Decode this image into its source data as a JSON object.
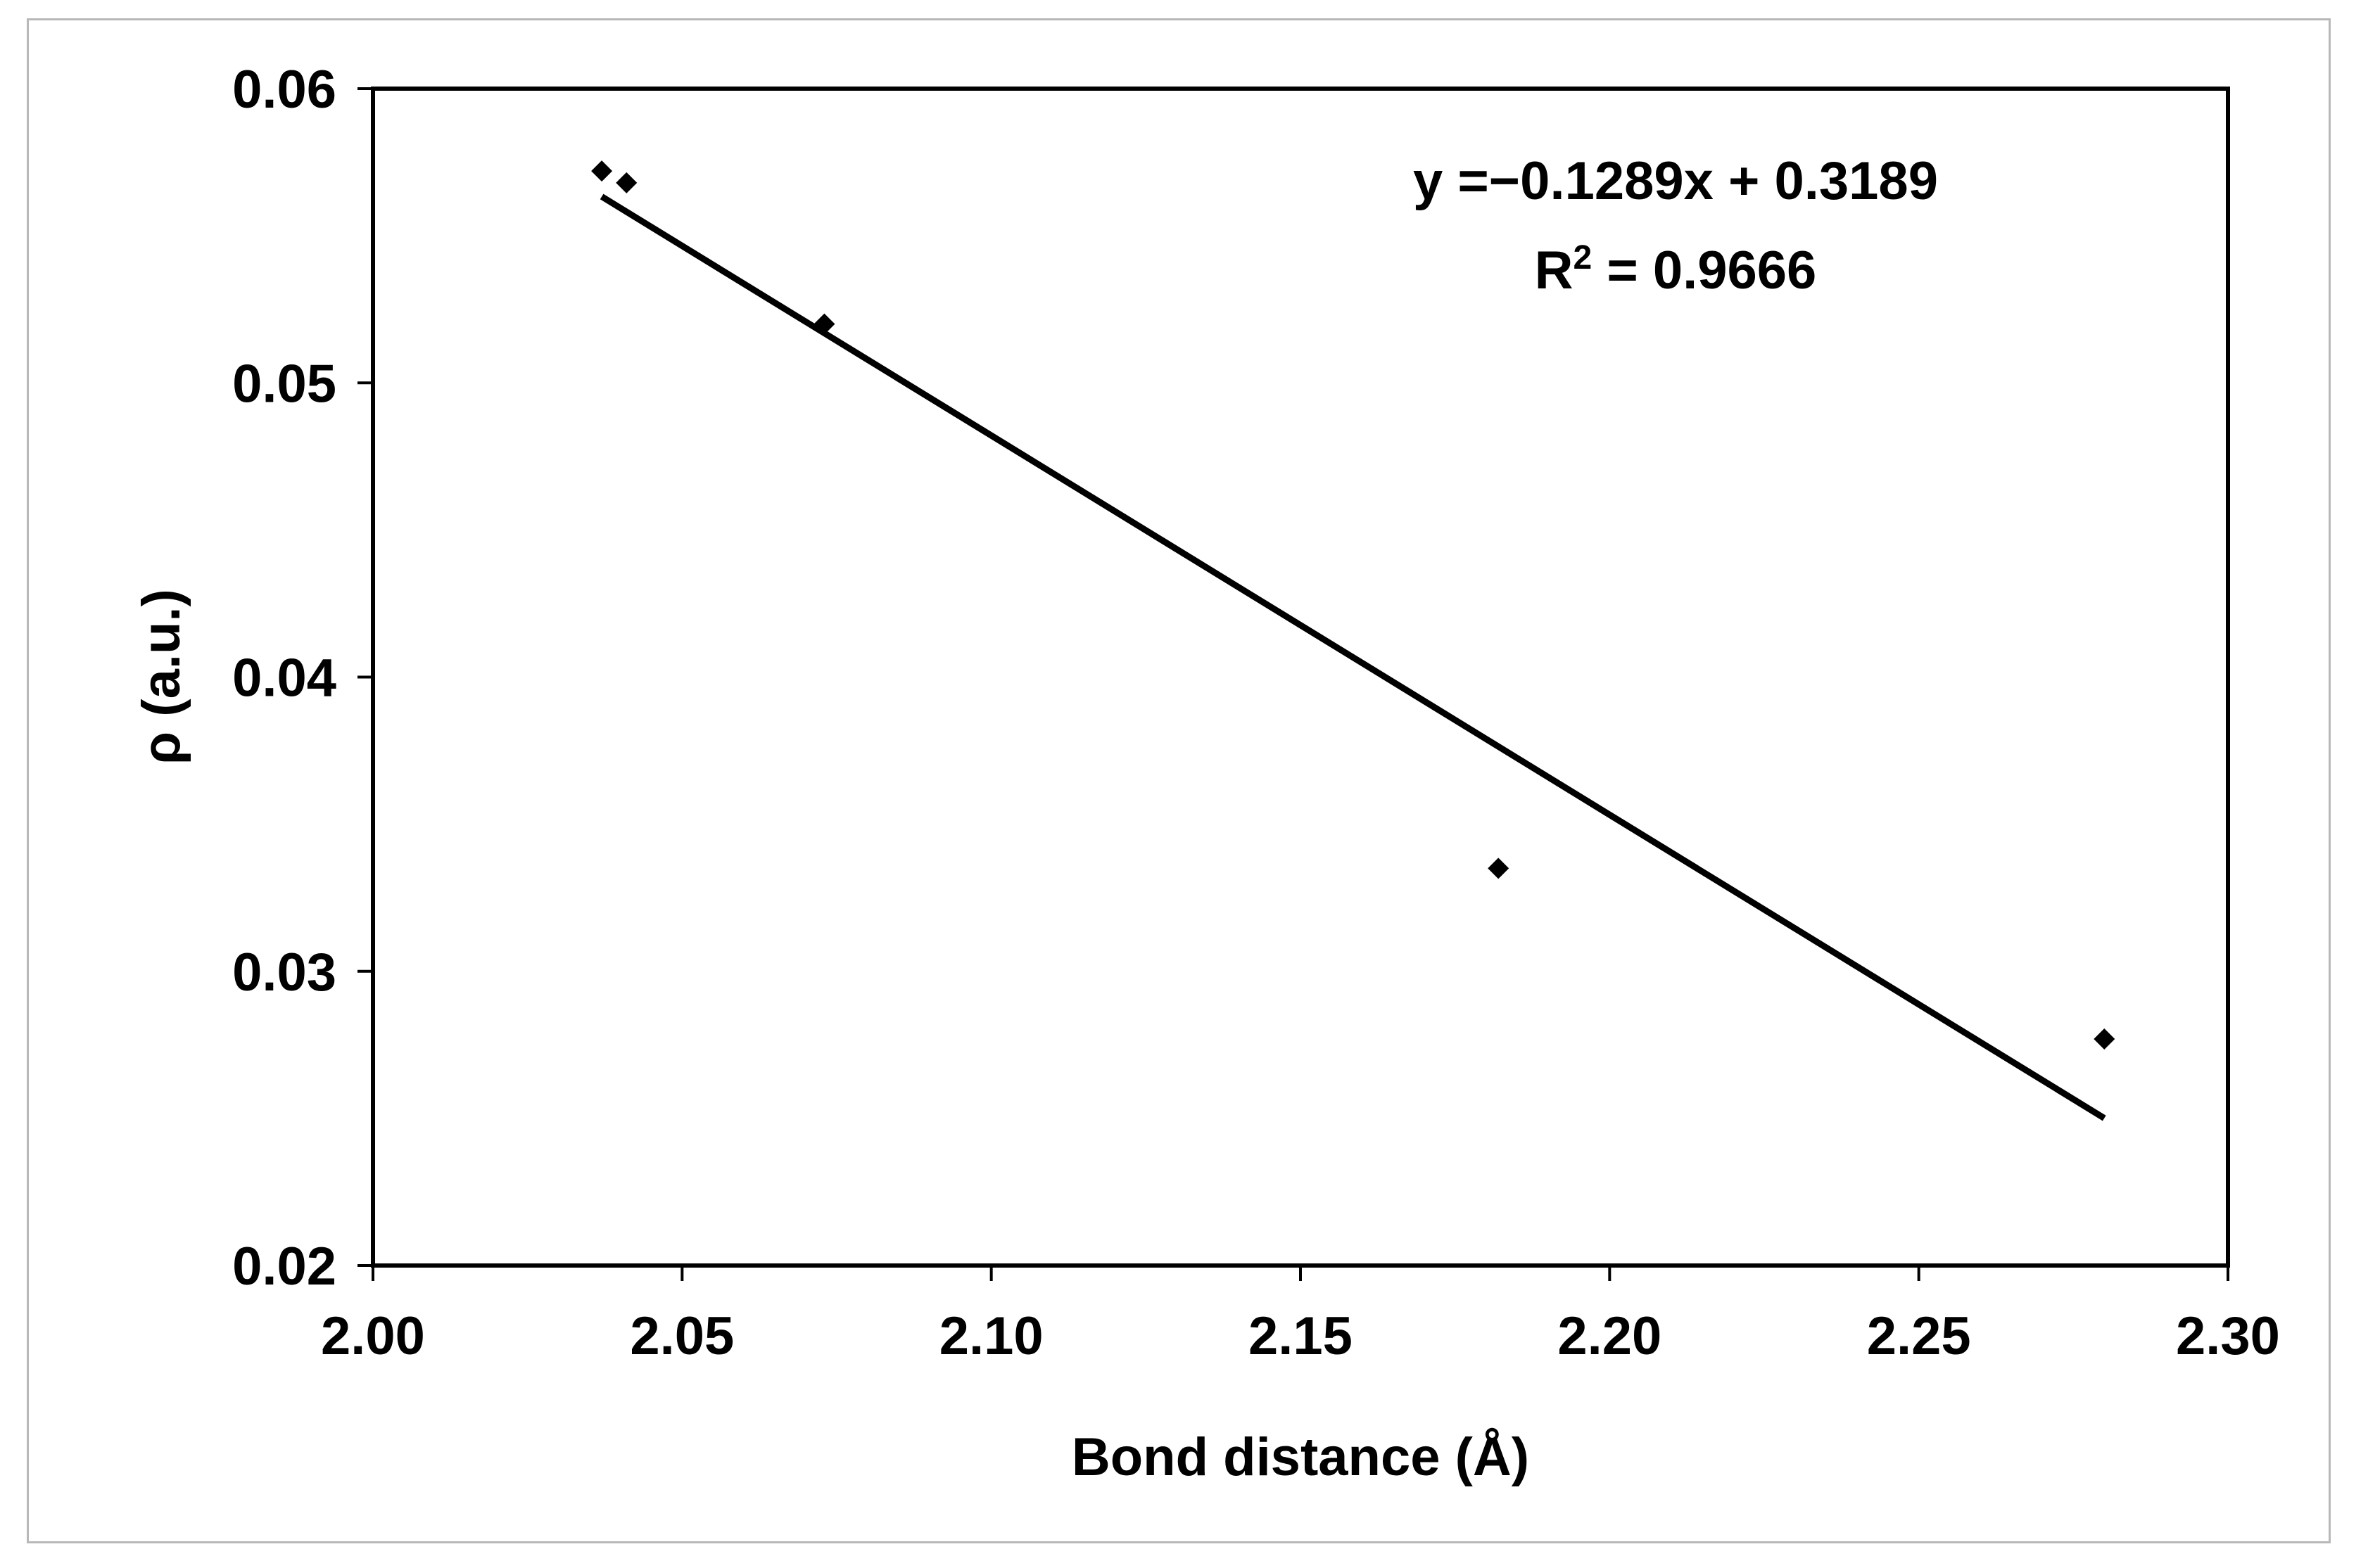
{
  "chart_data": {
    "type": "scatter",
    "xlabel": "Bond distance (Å)",
    "ylabel": "ρ (a.u.)",
    "xlim": [
      2.0,
      2.3
    ],
    "ylim": [
      0.02,
      0.06
    ],
    "x_ticks": [
      "2.00",
      "2.05",
      "2.10",
      "2.15",
      "2.20",
      "2.25",
      "2.30"
    ],
    "y_ticks": [
      "0.02",
      "0.03",
      "0.04",
      "0.05",
      "0.06"
    ],
    "grid": false,
    "marker": "diamond",
    "series": [
      {
        "points": [
          {
            "x": 2.037,
            "y": 0.0572
          },
          {
            "x": 2.041,
            "y": 0.0568
          },
          {
            "x": 2.073,
            "y": 0.052
          },
          {
            "x": 2.182,
            "y": 0.0335
          },
          {
            "x": 2.28,
            "y": 0.0277
          }
        ]
      }
    ],
    "trendline": {
      "type": "linear",
      "slope": -0.1289,
      "intercept": 0.3189,
      "x_range": [
        2.037,
        2.28
      ]
    },
    "annotations": {
      "equation": "y =−0.1289x + 0.3189",
      "r2_prefix": "R",
      "r2_sup": "2",
      "r2_suffix": " = 0.9666"
    },
    "colors": {
      "marker": "#000000",
      "line": "#000000",
      "axis": "#000000",
      "frame": "#b8b8b8"
    }
  }
}
